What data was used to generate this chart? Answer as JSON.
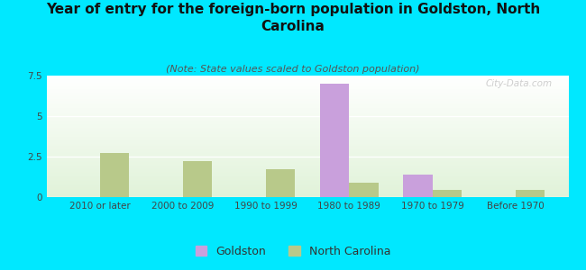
{
  "title": "Year of entry for the foreign-born population in Goldston, North\nCarolina",
  "subtitle": "(Note: State values scaled to Goldston population)",
  "categories": [
    "2010 or later",
    "2000 to 2009",
    "1990 to 1999",
    "1980 to 1989",
    "1970 to 1979",
    "Before 1970"
  ],
  "goldston_values": [
    0,
    0,
    0,
    7.0,
    1.4,
    0
  ],
  "nc_values": [
    2.7,
    2.2,
    1.7,
    0.9,
    0.45,
    0.45
  ],
  "goldston_color": "#c9a0dc",
  "nc_color": "#b8c98a",
  "background_color": "#00e8ff",
  "ylim": [
    0,
    7.5
  ],
  "yticks": [
    0,
    2.5,
    5,
    7.5
  ],
  "bar_width": 0.35,
  "title_fontsize": 11,
  "subtitle_fontsize": 8,
  "tick_fontsize": 7.5,
  "legend_fontsize": 9,
  "watermark": "City-Data.com"
}
